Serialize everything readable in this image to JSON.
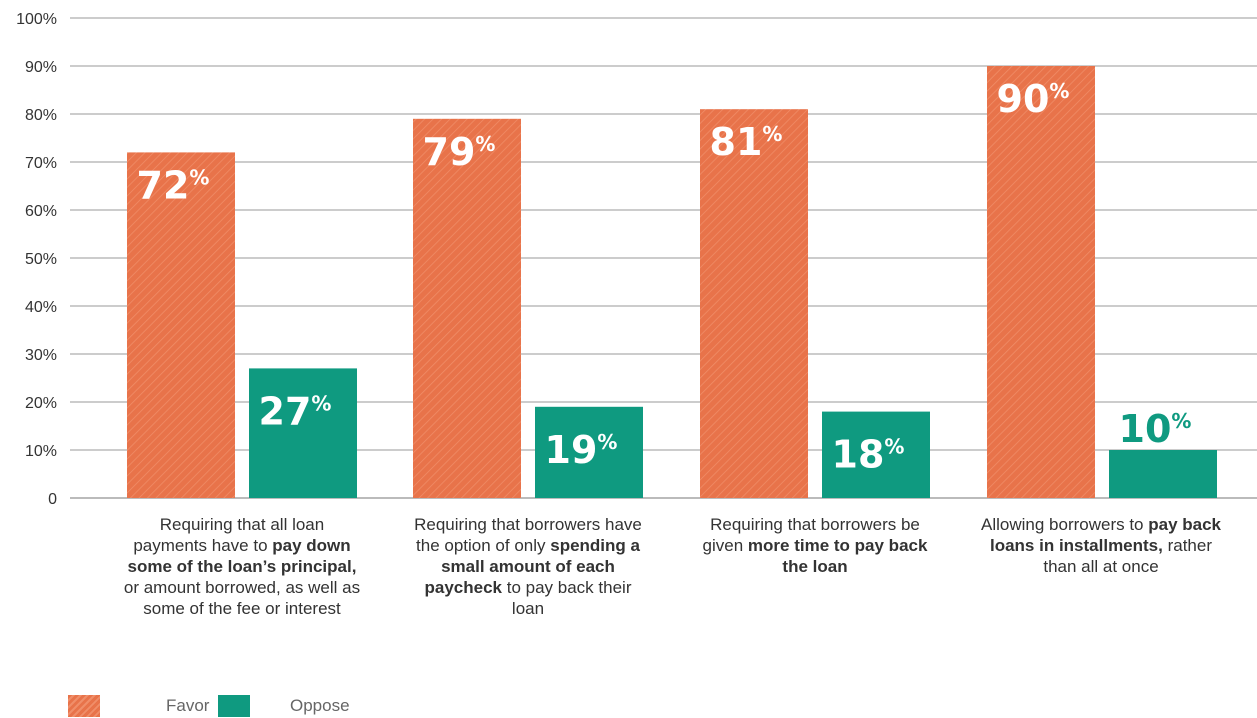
{
  "chart_data": {
    "type": "bar",
    "categories": [
      [
        {
          "t": "Requiring that all loan payments have to ",
          "b": false
        },
        {
          "t": "pay down some of the loan’s principal,",
          "b": true
        },
        {
          "t": " or amount borrowed, as well as some of the fee or interest",
          "b": false
        }
      ],
      [
        {
          "t": "Requiring that borrowers have the option of only ",
          "b": false
        },
        {
          "t": "spending a small amount of each paycheck",
          "b": true
        },
        {
          "t": " to pay back their loan",
          "b": false
        }
      ],
      [
        {
          "t": "Requiring that borrowers be given ",
          "b": false
        },
        {
          "t": "more time to pay back the loan",
          "b": true
        }
      ],
      [
        {
          "t": "Allowing borrowers to ",
          "b": false
        },
        {
          "t": "pay back loans in installments,",
          "b": true
        },
        {
          "t": " rather than all at once",
          "b": false
        }
      ]
    ],
    "series": [
      {
        "name": "Favor",
        "values": [
          72,
          79,
          81,
          90
        ],
        "color": "#e8734a",
        "labels": [
          "72",
          "79",
          "81",
          "90"
        ]
      },
      {
        "name": "Oppose",
        "values": [
          27,
          19,
          18,
          10
        ],
        "color": "#0f9a80",
        "labels": [
          "27",
          "19",
          "18",
          "10"
        ]
      }
    ],
    "value_suffix": "%",
    "ylim": [
      0,
      100
    ],
    "yticks": [
      "0",
      "10%",
      "20%",
      "30%",
      "40%",
      "50%",
      "60%",
      "70%",
      "80%",
      "90%",
      "100%"
    ],
    "grid": true,
    "legend": "bottom-left",
    "title": "",
    "xlabel": "",
    "ylabel": ""
  }
}
